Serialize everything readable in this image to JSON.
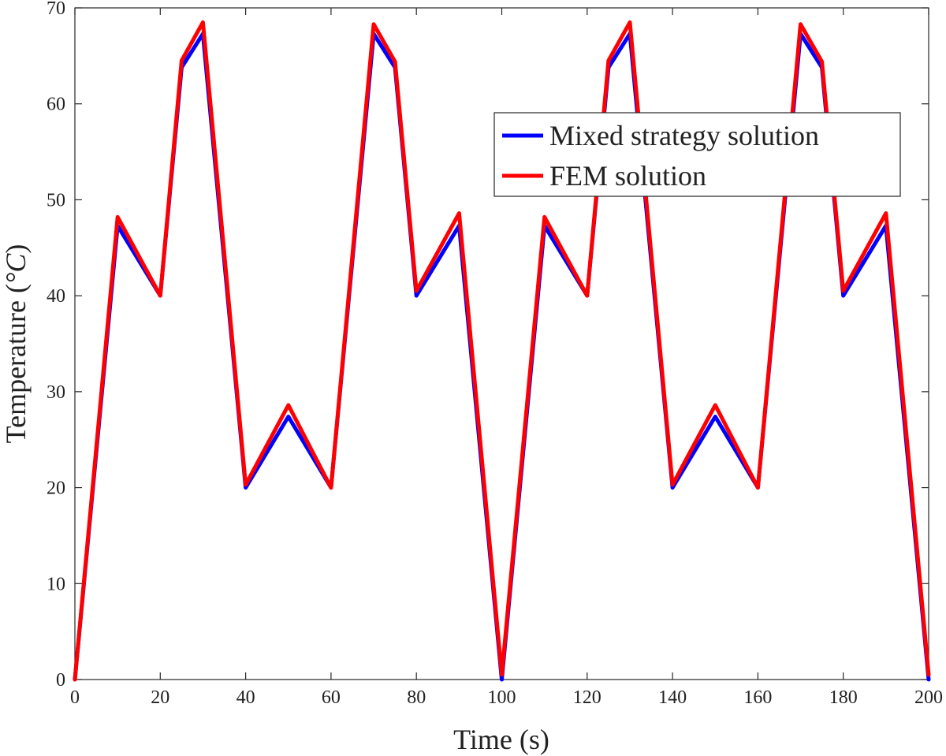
{
  "chart_data": {
    "type": "line",
    "title": "",
    "xlabel": "Time (s)",
    "ylabel_main": "Temperature (",
    "ylabel_unit": "°C",
    "ylabel_close": ")",
    "xlim": [
      0,
      200
    ],
    "ylim": [
      0,
      70
    ],
    "xticks": [
      0,
      20,
      40,
      60,
      80,
      100,
      120,
      140,
      160,
      180,
      200
    ],
    "yticks": [
      0,
      10,
      20,
      30,
      40,
      50,
      60,
      70
    ],
    "grid": false,
    "legend_position": "top-right",
    "series": [
      {
        "name": "Mixed strategy solution",
        "color": "#0000ff",
        "x": [
          0,
          10,
          20,
          25,
          30,
          40,
          50,
          60,
          70,
          75,
          80,
          90,
          100,
          110,
          120,
          125,
          130,
          140,
          150,
          160,
          170,
          175,
          180,
          190,
          200
        ],
        "y": [
          0,
          47.3,
          40,
          63.8,
          67.3,
          20,
          27.4,
          20,
          67.3,
          63.8,
          40,
          47.3,
          0,
          47.3,
          40,
          63.8,
          67.3,
          20,
          27.4,
          20,
          67.3,
          63.8,
          40,
          47.3,
          0
        ]
      },
      {
        "name": "FEM solution",
        "color": "#ff0000",
        "x": [
          0,
          10,
          20,
          25,
          30,
          40,
          50,
          60,
          70,
          75,
          80,
          90,
          100,
          110,
          120,
          125,
          130,
          140,
          150,
          160,
          170,
          175,
          180,
          190,
          200
        ],
        "y": [
          0,
          48.2,
          40,
          64.5,
          68.5,
          20.3,
          28.6,
          20,
          68.3,
          64.4,
          40.5,
          48.6,
          0.5,
          48.2,
          40,
          64.5,
          68.5,
          20.3,
          28.6,
          20,
          68.3,
          64.4,
          40.5,
          48.6,
          0.5
        ]
      }
    ]
  }
}
